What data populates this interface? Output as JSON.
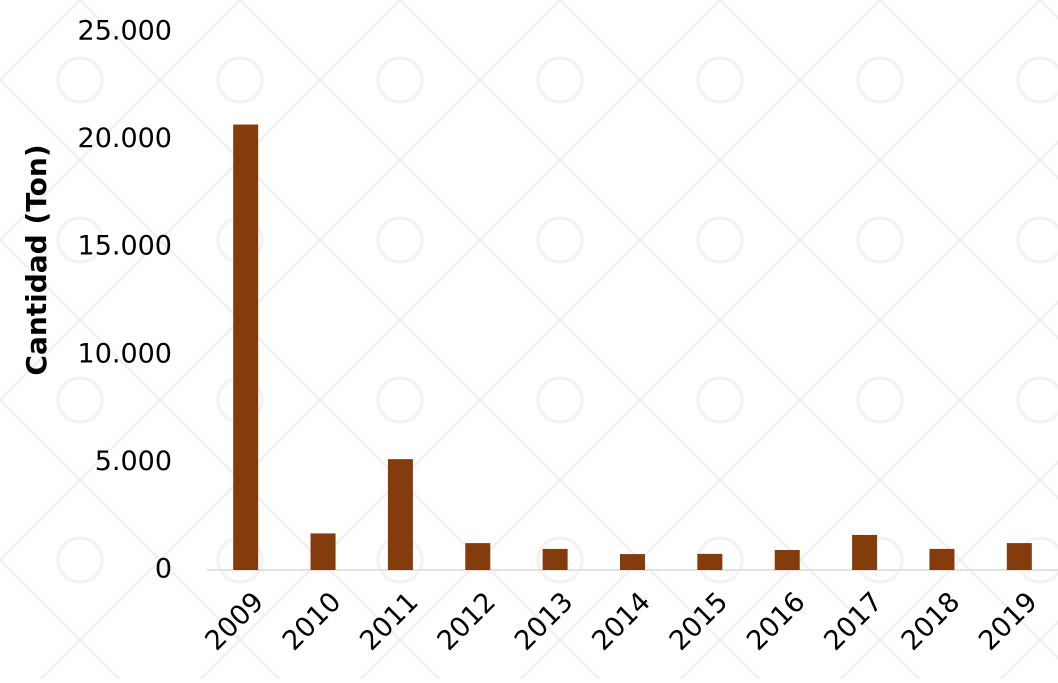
{
  "chart_data": {
    "type": "bar",
    "y_label": "Cantidad (Ton)",
    "categories": [
      "2009",
      "2010",
      "2011",
      "2012",
      "2013",
      "2014",
      "2015",
      "2016",
      "2017",
      "2018",
      "2019"
    ],
    "values": [
      20700,
      1700,
      5150,
      1250,
      980,
      740,
      750,
      930,
      1630,
      980,
      1250
    ],
    "color": "#843c0c",
    "ylim": [
      0,
      25000
    ],
    "yticks": [
      0,
      {
        "value": 5000,
        "label": "5.000"
      },
      {
        "value": 10000,
        "label": "10.000"
      },
      {
        "value": 15000,
        "label": "15.000"
      },
      {
        "value": 20000,
        "label": "20.000"
      },
      {
        "value": 25000,
        "label": "25.000"
      }
    ],
    "grid": false
  }
}
